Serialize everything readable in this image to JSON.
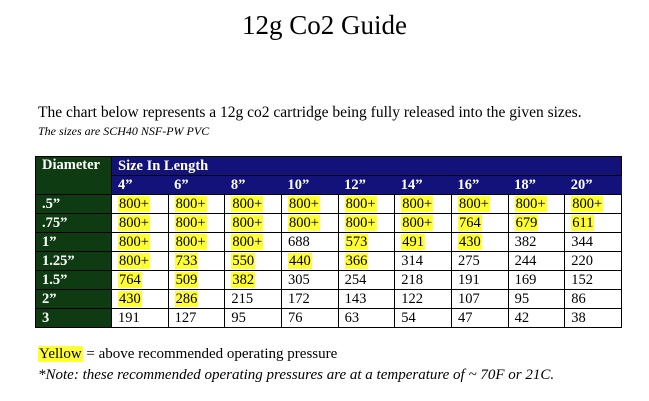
{
  "title": "12g Co2 Guide",
  "intro": "The chart below represents a 12g co2 cartridge being fully released into the given sizes.",
  "sizes_note": "The sizes are SCH40 NSF-PW PVC",
  "table": {
    "diameter_header": "Diameter",
    "length_header": "Size In Length",
    "lengths": [
      "4”",
      "6”",
      "8”",
      "10”",
      "12”",
      "14”",
      "16”",
      "18”",
      "20”"
    ],
    "highlight_color": "#ffff33",
    "rows": [
      {
        "diameter": ".5”",
        "cells": [
          {
            "v": "800+",
            "hl": true
          },
          {
            "v": "800+",
            "hl": true
          },
          {
            "v": "800+",
            "hl": true
          },
          {
            "v": "800+",
            "hl": true
          },
          {
            "v": "800+",
            "hl": true
          },
          {
            "v": "800+",
            "hl": true
          },
          {
            "v": "800+",
            "hl": true
          },
          {
            "v": "800+",
            "hl": true
          },
          {
            "v": "800+",
            "hl": true
          }
        ]
      },
      {
        "diameter": ".75”",
        "cells": [
          {
            "v": "800+",
            "hl": true
          },
          {
            "v": "800+",
            "hl": true
          },
          {
            "v": "800+",
            "hl": true
          },
          {
            "v": "800+",
            "hl": true
          },
          {
            "v": "800+",
            "hl": true
          },
          {
            "v": "800+",
            "hl": true
          },
          {
            "v": "764",
            "hl": true
          },
          {
            "v": "679",
            "hl": true
          },
          {
            "v": "611",
            "hl": true
          }
        ]
      },
      {
        "diameter": "1”",
        "cells": [
          {
            "v": "800+",
            "hl": true
          },
          {
            "v": "800+",
            "hl": true
          },
          {
            "v": "800+",
            "hl": true
          },
          {
            "v": "688",
            "hl": false
          },
          {
            "v": "573",
            "hl": true
          },
          {
            "v": "491",
            "hl": true
          },
          {
            "v": "430",
            "hl": true
          },
          {
            "v": "382",
            "hl": false
          },
          {
            "v": "344",
            "hl": false
          }
        ]
      },
      {
        "diameter": "1.25”",
        "cells": [
          {
            "v": "800+",
            "hl": true
          },
          {
            "v": "733",
            "hl": true
          },
          {
            "v": "550",
            "hl": true
          },
          {
            "v": "440",
            "hl": true
          },
          {
            "v": "366",
            "hl": true
          },
          {
            "v": "314",
            "hl": false
          },
          {
            "v": "275",
            "hl": false
          },
          {
            "v": "244",
            "hl": false
          },
          {
            "v": "220",
            "hl": false
          }
        ]
      },
      {
        "diameter": "1.5”",
        "cells": [
          {
            "v": "764",
            "hl": true
          },
          {
            "v": "509",
            "hl": true
          },
          {
            "v": "382",
            "hl": true
          },
          {
            "v": "305",
            "hl": false
          },
          {
            "v": "254",
            "hl": false
          },
          {
            "v": "218",
            "hl": false
          },
          {
            "v": "191",
            "hl": false
          },
          {
            "v": "169",
            "hl": false
          },
          {
            "v": "152",
            "hl": false
          }
        ]
      },
      {
        "diameter": "2”",
        "cells": [
          {
            "v": "430",
            "hl": true
          },
          {
            "v": "286",
            "hl": true
          },
          {
            "v": "215",
            "hl": false
          },
          {
            "v": "172",
            "hl": false
          },
          {
            "v": "143",
            "hl": false
          },
          {
            "v": "122",
            "hl": false
          },
          {
            "v": "107",
            "hl": false
          },
          {
            "v": "95",
            "hl": false
          },
          {
            "v": "86",
            "hl": false
          }
        ]
      },
      {
        "diameter": "3",
        "cells": [
          {
            "v": "191",
            "hl": false
          },
          {
            "v": "127",
            "hl": false
          },
          {
            "v": "95",
            "hl": false
          },
          {
            "v": "76",
            "hl": false
          },
          {
            "v": "63",
            "hl": false
          },
          {
            "v": "54",
            "hl": false
          },
          {
            "v": "47",
            "hl": false
          },
          {
            "v": "42",
            "hl": false
          },
          {
            "v": "38",
            "hl": false
          }
        ]
      }
    ]
  },
  "legend": {
    "word": "Yellow",
    "text": " = above recommended operating pressure"
  },
  "note": "*Note: these recommended operating pressures are at a temperature of ~ 70F or 21C."
}
